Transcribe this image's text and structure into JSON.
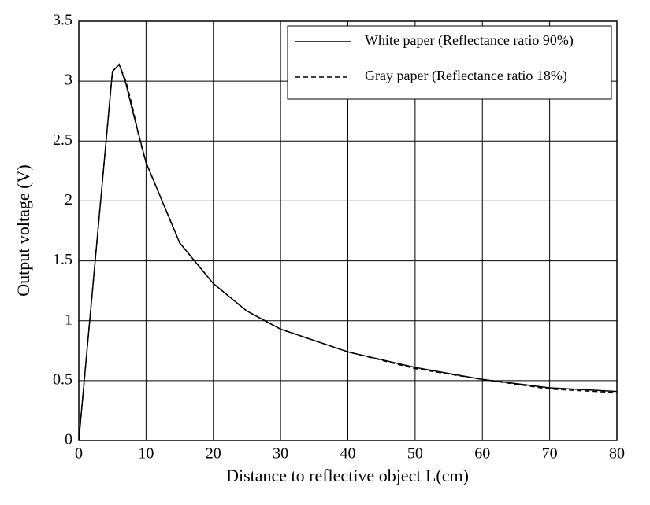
{
  "chart_data": {
    "type": "line",
    "xlabel": "Distance to reflective object L(cm)",
    "ylabel": "Output voltage (V)",
    "xlim": [
      0,
      80
    ],
    "xticks": [
      0,
      10,
      20,
      30,
      40,
      50,
      60,
      70,
      80
    ],
    "ylim": [
      0,
      3.5
    ],
    "yticks": [
      0,
      0.5,
      1,
      1.5,
      2,
      2.5,
      3,
      3.5
    ],
    "grid": true,
    "legend": "upper right",
    "series": [
      {
        "name": "White paper (Reflectance ratio 90%)",
        "color": "#000000",
        "dash": "solid",
        "x": [
          0,
          5,
          6,
          7,
          8,
          10,
          15,
          20,
          25,
          30,
          40,
          50,
          60,
          70,
          80
        ],
        "values": [
          0,
          3.08,
          3.14,
          2.98,
          2.75,
          2.32,
          1.65,
          1.31,
          1.08,
          0.93,
          0.74,
          0.61,
          0.51,
          0.44,
          0.41
        ]
      },
      {
        "name": "Gray paper (Reflectance ratio 18%)",
        "color": "#000000",
        "dash": "dashed",
        "x": [
          0,
          5,
          6,
          7,
          8,
          9,
          10,
          15,
          20,
          25,
          30,
          40,
          50,
          60,
          70,
          80
        ],
        "values": [
          0,
          3.08,
          3.14,
          3.0,
          2.78,
          2.52,
          2.32,
          1.65,
          1.31,
          1.08,
          0.93,
          0.74,
          0.6,
          0.51,
          0.43,
          0.4
        ]
      }
    ]
  }
}
